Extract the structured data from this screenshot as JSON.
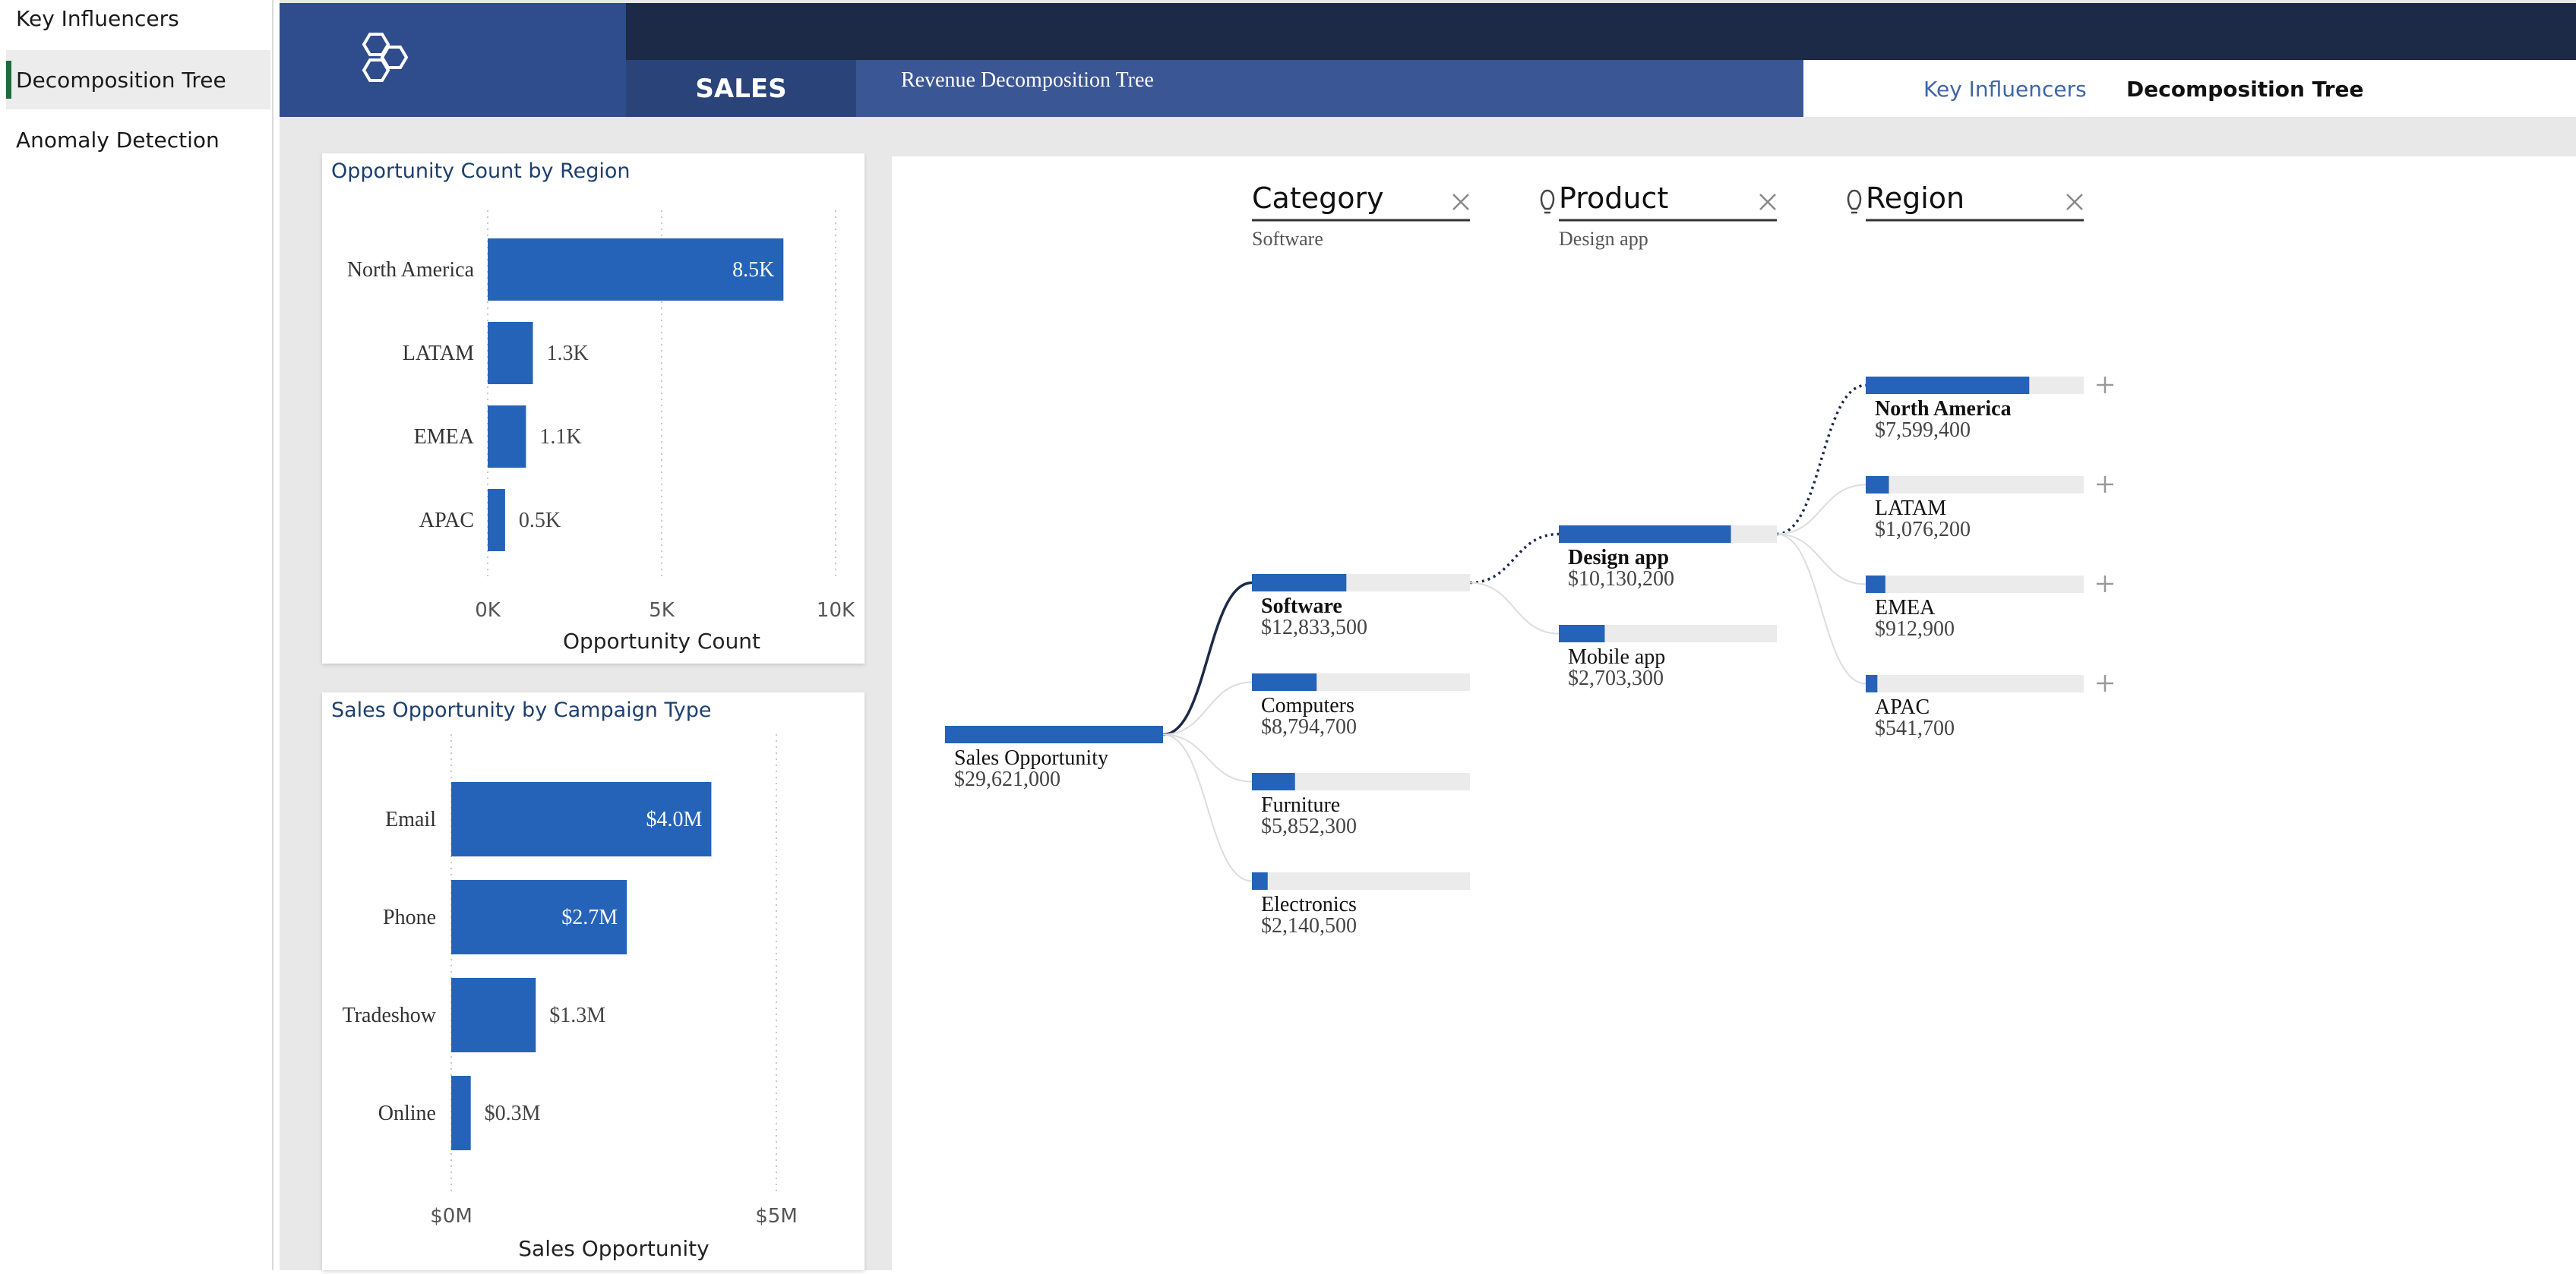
{
  "sidebar": {
    "items": [
      {
        "label": "Key Influencers",
        "active": false
      },
      {
        "label": "Decomposition Tree",
        "active": true
      },
      {
        "label": "Anomaly Detection",
        "active": false
      }
    ]
  },
  "header": {
    "logo_icon": "hexagons-logo-icon",
    "section": "SALES",
    "subtitle": "Revenue Decomposition Tree",
    "tabs": [
      {
        "label": "Key Influencers",
        "active": false
      },
      {
        "label": "Decomposition Tree",
        "active": true
      }
    ]
  },
  "colors": {
    "bar": "#2563b8",
    "nav_dark": "#1c2a48",
    "nav_blue": "#2f4d8c",
    "title_blue": "#1d3f6e",
    "tab_link": "#3d66a8"
  },
  "chart_data": [
    {
      "type": "bar",
      "orientation": "horizontal",
      "title": "Opportunity Count by Region",
      "categories": [
        "North America",
        "LATAM",
        "EMEA",
        "APAC"
      ],
      "values": [
        8500,
        1300,
        1100,
        500
      ],
      "data_labels": [
        "8.5K",
        "1.3K",
        "1.1K",
        "0.5K"
      ],
      "xlabel": "Opportunity Count",
      "xlim": [
        0,
        10000
      ],
      "xticks": [
        0,
        5000,
        10000
      ],
      "xtick_labels": [
        "0K",
        "5K",
        "10K"
      ],
      "grid": "vertical dotted"
    },
    {
      "type": "bar",
      "orientation": "horizontal",
      "title": "Sales Opportunity by Campaign Type",
      "categories": [
        "Email",
        "Phone",
        "Tradeshow",
        "Online"
      ],
      "values": [
        4000000,
        2700000,
        1300000,
        300000
      ],
      "data_labels": [
        "$4.0M",
        "$2.7M",
        "$1.3M",
        "$0.3M"
      ],
      "xlabel": "Sales Opportunity",
      "xlim": [
        0,
        5000000
      ],
      "xticks": [
        0,
        5000000
      ],
      "xtick_labels": [
        "$0M",
        "$5M"
      ],
      "grid": "vertical dotted"
    }
  ],
  "decomposition": {
    "headers": [
      {
        "label": "Category",
        "selected": "Software",
        "lightbulb": false
      },
      {
        "label": "Product",
        "selected": "Design app",
        "lightbulb": true
      },
      {
        "label": "Region",
        "selected": "",
        "lightbulb": true
      }
    ],
    "root": {
      "label": "Sales Opportunity",
      "value": 29621000,
      "value_label": "$29,621,000"
    },
    "levels": [
      [
        {
          "label": "Software",
          "value": 12833500,
          "value_label": "$12,833,500",
          "selected": true
        },
        {
          "label": "Computers",
          "value": 8794700,
          "value_label": "$8,794,700",
          "selected": false
        },
        {
          "label": "Furniture",
          "value": 5852300,
          "value_label": "$5,852,300",
          "selected": false
        },
        {
          "label": "Electronics",
          "value": 2140500,
          "value_label": "$2,140,500",
          "selected": false
        }
      ],
      [
        {
          "label": "Design app",
          "value": 10130200,
          "value_label": "$10,130,200",
          "selected": true
        },
        {
          "label": "Mobile app",
          "value": 2703300,
          "value_label": "$2,703,300",
          "selected": false
        }
      ],
      [
        {
          "label": "North America",
          "value": 7599400,
          "value_label": "$7,599,400",
          "selected": true
        },
        {
          "label": "LATAM",
          "value": 1076200,
          "value_label": "$1,076,200",
          "selected": false
        },
        {
          "label": "EMEA",
          "value": 912900,
          "value_label": "$912,900",
          "selected": false
        },
        {
          "label": "APAC",
          "value": 541700,
          "value_label": "$541,700",
          "selected": false
        }
      ]
    ]
  }
}
